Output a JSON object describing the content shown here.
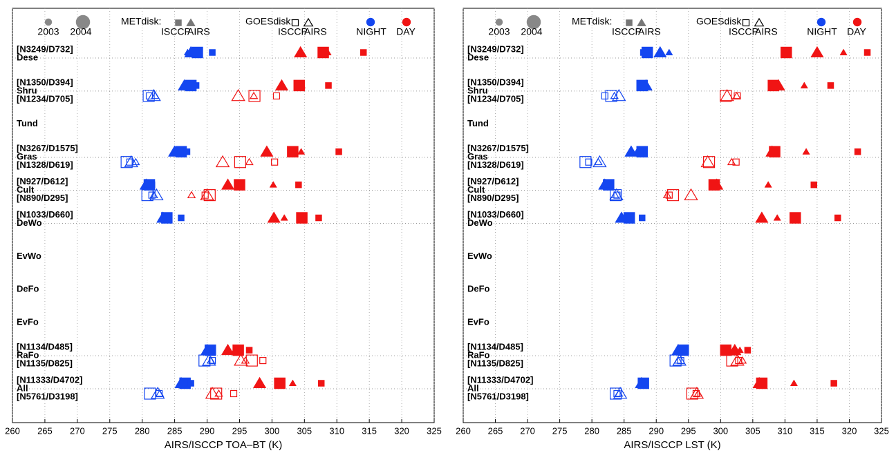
{
  "chart_data": [
    {
      "type": "scatter",
      "xlabel": "AIRS/ISCCP TOA–BT (K)",
      "xlim": [
        260,
        325
      ],
      "xticks": [
        260,
        265,
        270,
        275,
        280,
        285,
        290,
        295,
        300,
        305,
        310,
        315,
        320,
        325
      ],
      "grid": true,
      "categories": [
        "Dese",
        "Shru",
        "Tund",
        "Gras",
        "Cult",
        "DeWo",
        "EvWo",
        "DeFo",
        "EvFo",
        "RaFo",
        "All"
      ],
      "met_labels": [
        "[N3249/D732]",
        "[N1350/D394]",
        null,
        "[N3267/D1575]",
        "[N927/D612]",
        "[N1033/D660]",
        null,
        null,
        null,
        "[N1134/D485]",
        "[N11333/D4702]"
      ],
      "goes_labels": [
        null,
        "[N1234/D705]",
        null,
        "[N1328/D619]",
        "[N890/D295]",
        null,
        null,
        null,
        null,
        "[N1135/D825]",
        "[N5761/D3198]"
      ],
      "legend": {
        "years": [
          "2003",
          "2004"
        ],
        "satellites": [
          "METdisk:",
          "GOESdisk:"
        ],
        "products": [
          "ISCCP",
          "AIRS"
        ],
        "times": [
          "NIGHT",
          "DAY"
        ]
      },
      "series": [
        {
          "satellite": "METdisk:",
          "product": "ISCCP",
          "year": "2004",
          "time": "NIGHT",
          "color": "#1446f0",
          "values": [
            288.5,
            287.5,
            null,
            286.0,
            281.1,
            283.8,
            null,
            null,
            null,
            290.5,
            286.6
          ]
        },
        {
          "satellite": "METdisk:",
          "product": "AIRS",
          "year": "2004",
          "time": "NIGHT",
          "color": "#1446f0",
          "values": [
            287.5,
            286.5,
            null,
            285.0,
            280.6,
            283.2,
            null,
            null,
            null,
            290.0,
            286.0
          ]
        },
        {
          "satellite": "METdisk:",
          "product": "ISCCP",
          "year": "2004",
          "time": "DAY",
          "color": "#f01414",
          "values": [
            307.9,
            304.2,
            null,
            303.2,
            295.0,
            304.6,
            null,
            null,
            null,
            294.8,
            301.2
          ]
        },
        {
          "satellite": "METdisk:",
          "product": "AIRS",
          "year": "2004",
          "time": "DAY",
          "color": "#f01414",
          "values": [
            304.4,
            301.5,
            null,
            299.2,
            293.2,
            300.3,
            null,
            null,
            null,
            293.2,
            298.1
          ]
        },
        {
          "satellite": "METdisk:",
          "product": "ISCCP",
          "year": "2003",
          "time": "NIGHT",
          "color": "#1446f0",
          "values": [
            290.8,
            288.3,
            null,
            286.9,
            281.5,
            286.0,
            null,
            null,
            null,
            290.5,
            287.5
          ]
        },
        {
          "satellite": "METdisk:",
          "product": "AIRS",
          "year": "2003",
          "time": "NIGHT",
          "color": "#1446f0",
          "values": [
            287.0,
            287.0,
            null,
            285.7,
            280.8,
            283.4,
            null,
            null,
            null,
            290.0,
            286.3
          ]
        },
        {
          "satellite": "METdisk:",
          "product": "ISCCP",
          "year": "2003",
          "time": "DAY",
          "color": "#f01414",
          "values": [
            314.1,
            308.7,
            null,
            310.3,
            304.1,
            307.2,
            null,
            null,
            null,
            296.5,
            307.6
          ]
        },
        {
          "satellite": "METdisk:",
          "product": "AIRS",
          "year": "2003",
          "time": "DAY",
          "color": "#f01414",
          "values": [
            308.6,
            304.6,
            null,
            304.5,
            300.2,
            301.9,
            null,
            null,
            null,
            294.3,
            303.2
          ]
        },
        {
          "satellite": "GOESdisk:",
          "product": "ISCCP",
          "year": "2004",
          "time": "NIGHT",
          "color": "#1446f0",
          "values": [
            null,
            281.0,
            null,
            277.6,
            280.8,
            null,
            null,
            null,
            null,
            289.6,
            281.2
          ]
        },
        {
          "satellite": "GOESdisk:",
          "product": "AIRS",
          "year": "2004",
          "time": "NIGHT",
          "color": "#1446f0",
          "values": [
            null,
            281.8,
            null,
            278.3,
            282.2,
            null,
            null,
            null,
            null,
            290.3,
            282.4
          ]
        },
        {
          "satellite": "GOESdisk:",
          "product": "ISCCP",
          "year": "2004",
          "time": "DAY",
          "color": "#f01414",
          "values": [
            null,
            297.3,
            null,
            295.1,
            290.4,
            null,
            null,
            null,
            null,
            296.9,
            291.4
          ]
        },
        {
          "satellite": "GOESdisk:",
          "product": "AIRS",
          "year": "2004",
          "time": "DAY",
          "color": "#f01414",
          "values": [
            null,
            294.8,
            null,
            292.4,
            290.0,
            null,
            null,
            null,
            null,
            295.2,
            290.8
          ]
        },
        {
          "satellite": "GOESdisk:",
          "product": "ISCCP",
          "year": "2003",
          "time": "NIGHT",
          "color": "#1446f0",
          "values": [
            null,
            281.1,
            null,
            278.1,
            281.5,
            null,
            null,
            null,
            null,
            290.8,
            282.6
          ]
        },
        {
          "satellite": "GOESdisk:",
          "product": "AIRS",
          "year": "2003",
          "time": "NIGHT",
          "color": "#1446f0",
          "values": [
            null,
            282.0,
            null,
            279.0,
            281.8,
            null,
            null,
            null,
            null,
            290.6,
            282.7
          ]
        },
        {
          "satellite": "GOESdisk:",
          "product": "ISCCP",
          "year": "2003",
          "time": "DAY",
          "color": "#f01414",
          "values": [
            null,
            300.7,
            null,
            300.4,
            289.7,
            null,
            null,
            null,
            null,
            298.6,
            294.1
          ]
        },
        {
          "satellite": "GOESdisk:",
          "product": "AIRS",
          "year": "2003",
          "time": "DAY",
          "color": "#f01414",
          "values": [
            null,
            297.2,
            null,
            296.5,
            287.6,
            null,
            null,
            null,
            null,
            295.9,
            291.8
          ]
        }
      ]
    },
    {
      "type": "scatter",
      "xlabel": "AIRS/ISCCP LST (K)",
      "xlim": [
        260,
        325
      ],
      "xticks": [
        260,
        265,
        270,
        275,
        280,
        285,
        290,
        295,
        300,
        305,
        310,
        315,
        320,
        325
      ],
      "grid": true,
      "categories": [
        "Dese",
        "Shru",
        "Tund",
        "Gras",
        "Cult",
        "DeWo",
        "EvWo",
        "DeFo",
        "EvFo",
        "RaFo",
        "All"
      ],
      "met_labels": [
        "[N3249/D732]",
        "[N1350/D394]",
        null,
        "[N3267/D1575]",
        "[N927/D612]",
        "[N1033/D660]",
        null,
        null,
        null,
        "[N1134/D485]",
        "[N11333/D4702]"
      ],
      "goes_labels": [
        null,
        "[N1234/D705]",
        null,
        "[N1328/D619]",
        "[N890/D295]",
        null,
        null,
        null,
        null,
        "[N1135/D825]",
        "[N5761/D3198]"
      ],
      "legend": {
        "years": [
          "2003",
          "2004"
        ],
        "satellites": [
          "METdisk:",
          "GOESdisk:"
        ],
        "products": [
          "ISCCP",
          "AIRS"
        ],
        "times": [
          "NIGHT",
          "DAY"
        ]
      },
      "series": [
        {
          "satellite": "METdisk:",
          "product": "ISCCP",
          "year": "2004",
          "time": "NIGHT",
          "color": "#1446f0",
          "values": [
            288.6,
            287.8,
            null,
            287.8,
            282.6,
            285.8,
            null,
            null,
            null,
            294.2,
            288.0
          ]
        },
        {
          "satellite": "METdisk:",
          "product": "AIRS",
          "year": "2004",
          "time": "NIGHT",
          "color": "#1446f0",
          "values": [
            290.6,
            288.4,
            null,
            286.1,
            282.0,
            284.6,
            null,
            null,
            null,
            293.4,
            287.7
          ]
        },
        {
          "satellite": "METdisk:",
          "product": "ISCCP",
          "year": "2004",
          "time": "DAY",
          "color": "#f01414",
          "values": [
            310.2,
            308.2,
            null,
            308.4,
            299.0,
            311.6,
            null,
            null,
            null,
            300.8,
            306.4
          ]
        },
        {
          "satellite": "METdisk:",
          "product": "AIRS",
          "year": "2004",
          "time": "DAY",
          "color": "#f01414",
          "values": [
            315.0,
            309.0,
            null,
            308.0,
            299.4,
            306.4,
            null,
            null,
            null,
            302.2,
            306.0
          ]
        },
        {
          "satellite": "METdisk:",
          "product": "ISCCP",
          "year": "2003",
          "time": "NIGHT",
          "color": "#1446f0",
          "values": [
            288.0,
            288.0,
            null,
            287.5,
            282.8,
            287.8,
            null,
            null,
            null,
            294.5,
            288.1
          ]
        },
        {
          "satellite": "METdisk:",
          "product": "AIRS",
          "year": "2003",
          "time": "NIGHT",
          "color": "#1446f0",
          "values": [
            292.0,
            288.2,
            null,
            287.0,
            282.3,
            285.2,
            null,
            null,
            null,
            293.8,
            287.9
          ]
        },
        {
          "satellite": "METdisk:",
          "product": "ISCCP",
          "year": "2003",
          "time": "DAY",
          "color": "#f01414",
          "values": [
            322.8,
            317.1,
            null,
            321.3,
            314.5,
            318.2,
            null,
            null,
            null,
            304.2,
            317.6
          ]
        },
        {
          "satellite": "METdisk:",
          "product": "AIRS",
          "year": "2003",
          "time": "DAY",
          "color": "#f01414",
          "values": [
            319.1,
            313.0,
            null,
            313.3,
            307.4,
            308.8,
            null,
            null,
            null,
            303.0,
            311.4
          ]
        },
        {
          "satellite": "GOESdisk:",
          "product": "ISCCP",
          "year": "2004",
          "time": "NIGHT",
          "color": "#1446f0",
          "values": [
            null,
            283.0,
            null,
            279.0,
            283.7,
            null,
            null,
            null,
            null,
            293.0,
            283.7
          ]
        },
        {
          "satellite": "GOESdisk:",
          "product": "AIRS",
          "year": "2004",
          "time": "NIGHT",
          "color": "#1446f0",
          "values": [
            null,
            284.2,
            null,
            281.2,
            283.8,
            null,
            null,
            null,
            null,
            293.6,
            284.4
          ]
        },
        {
          "satellite": "GOESdisk:",
          "product": "ISCCP",
          "year": "2004",
          "time": "DAY",
          "color": "#f01414",
          "values": [
            null,
            300.8,
            null,
            298.2,
            292.6,
            null,
            null,
            null,
            null,
            301.8,
            295.6
          ]
        },
        {
          "satellite": "GOESdisk:",
          "product": "AIRS",
          "year": "2004",
          "time": "DAY",
          "color": "#f01414",
          "values": [
            null,
            301.0,
            null,
            298.0,
            295.4,
            null,
            null,
            null,
            null,
            302.6,
            296.3
          ]
        },
        {
          "satellite": "GOESdisk:",
          "product": "ISCCP",
          "year": "2003",
          "time": "NIGHT",
          "color": "#1446f0",
          "values": [
            null,
            282.0,
            null,
            279.5,
            283.9,
            null,
            null,
            null,
            null,
            293.8,
            283.9
          ]
        },
        {
          "satellite": "GOESdisk:",
          "product": "AIRS",
          "year": "2003",
          "time": "NIGHT",
          "color": "#1446f0",
          "values": [
            null,
            283.5,
            null,
            281.0,
            283.6,
            null,
            null,
            null,
            null,
            293.4,
            284.2
          ]
        },
        {
          "satellite": "GOESdisk:",
          "product": "ISCCP",
          "year": "2003",
          "time": "DAY",
          "color": "#f01414",
          "values": [
            null,
            302.6,
            null,
            302.4,
            292.0,
            null,
            null,
            null,
            null,
            302.8,
            296.2
          ]
        },
        {
          "satellite": "GOESdisk:",
          "product": "AIRS",
          "year": "2003",
          "time": "DAY",
          "color": "#f01414",
          "values": [
            null,
            302.5,
            null,
            301.7,
            291.7,
            null,
            null,
            null,
            null,
            303.4,
            296.5
          ]
        }
      ]
    }
  ]
}
